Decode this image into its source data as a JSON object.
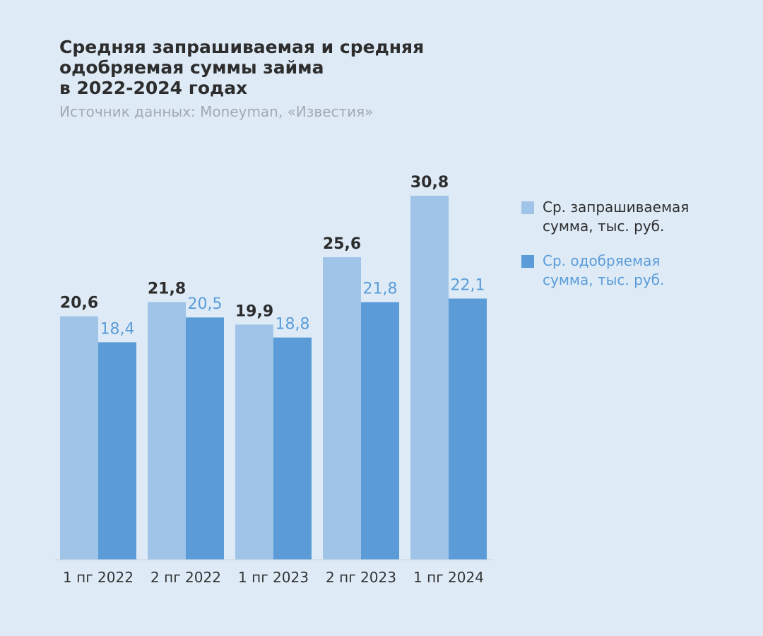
{
  "title_lines": [
    "Средняя запрашиваемая и средняя",
    "одобряемая суммы займа",
    "в 2022-2024 годах"
  ],
  "subtitle": "Источник данных: Moneyman, «Известия»",
  "colors": {
    "background": "#deebf7",
    "requested": "#9fc4e8",
    "approved": "#5b9cd8",
    "requested_label": "#2d2d2d",
    "approved_label": "#5b9cd8",
    "axis": "#c8d4e0"
  },
  "chart_data": {
    "type": "bar",
    "title": "Средняя запрашиваемая и средняя одобряемая суммы займа в 2022-2024 годах",
    "categories": [
      "1 пг 2022",
      "2 пг 2022",
      "1 пг 2023",
      "2 пг 2023",
      "1 пг 2024"
    ],
    "series": [
      {
        "name": "Ср. запрашиваемая сумма, тыс. руб.",
        "values": [
          20.6,
          21.8,
          19.9,
          25.6,
          30.8
        ],
        "labels": [
          "20,6",
          "21,8",
          "19,9",
          "25,6",
          "30,8"
        ]
      },
      {
        "name": "Ср. одобряемая сумма, тыс. руб.",
        "values": [
          18.4,
          20.5,
          18.8,
          21.8,
          22.1
        ],
        "labels": [
          "18,4",
          "20,5",
          "18,8",
          "21,8",
          "22,1"
        ]
      }
    ],
    "ylim": [
      0,
      30.8
    ],
    "grid": false,
    "legend": "right"
  },
  "legend": [
    {
      "lines": [
        "Ср. запрашиваемая",
        "сумма, тыс. руб."
      ]
    },
    {
      "lines": [
        "Ср. одобряемая",
        "сумма, тыс. руб."
      ]
    }
  ]
}
